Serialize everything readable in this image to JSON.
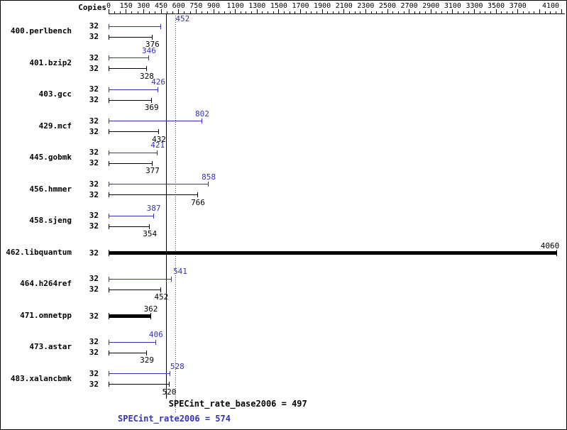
{
  "chart_data": {
    "type": "bar",
    "orientation": "horizontal",
    "title": "",
    "copies_label": "Copies",
    "colors": {
      "peak": "#3333bb",
      "base": "#000000"
    },
    "axis": {
      "max": 4100,
      "break_value": 900,
      "step_below_break": 150,
      "step_above_break": 200,
      "minor_step": 50,
      "labels": [
        0,
        150,
        300,
        450,
        600,
        750,
        900,
        1100,
        1300,
        1500,
        1700,
        1900,
        2100,
        2300,
        2500,
        2700,
        2900,
        3100,
        3300,
        3500,
        3700,
        4100
      ]
    },
    "benchmarks": [
      {
        "name": "400.perlbench",
        "copies": 32,
        "peak": 452,
        "base": 376,
        "peak_label_shift": 30
      },
      {
        "name": "401.bzip2",
        "copies": 32,
        "peak": 346,
        "base": 328
      },
      {
        "name": "403.gcc",
        "copies": 32,
        "peak": 426,
        "base": 369
      },
      {
        "name": "429.mcf",
        "copies": 32,
        "peak": 802,
        "base": 432
      },
      {
        "name": "445.gobmk",
        "copies": 32,
        "peak": 421,
        "base": 377
      },
      {
        "name": "456.hmmer",
        "copies": 32,
        "peak": 858,
        "base": 766
      },
      {
        "name": "458.sjeng",
        "copies": 32,
        "peak": 387,
        "base": 354
      },
      {
        "name": "462.libquantum",
        "copies": 32,
        "single": 4060
      },
      {
        "name": "464.h264ref",
        "copies": 32,
        "peak": 541,
        "base": 452,
        "peak_label_shift": 12
      },
      {
        "name": "471.omnetpp",
        "copies": 32,
        "single": 362
      },
      {
        "name": "473.astar",
        "copies": 32,
        "peak": 406,
        "base": 329
      },
      {
        "name": "483.xalancbmk",
        "copies": 32,
        "peak": 528,
        "base": 520,
        "peak_label_shift": 10
      }
    ],
    "summary": {
      "base_value": 497,
      "base_label": "SPECint_rate_base2006 = 497",
      "peak_value": 574,
      "peak_label": "SPECint_rate2006 = 574"
    }
  }
}
